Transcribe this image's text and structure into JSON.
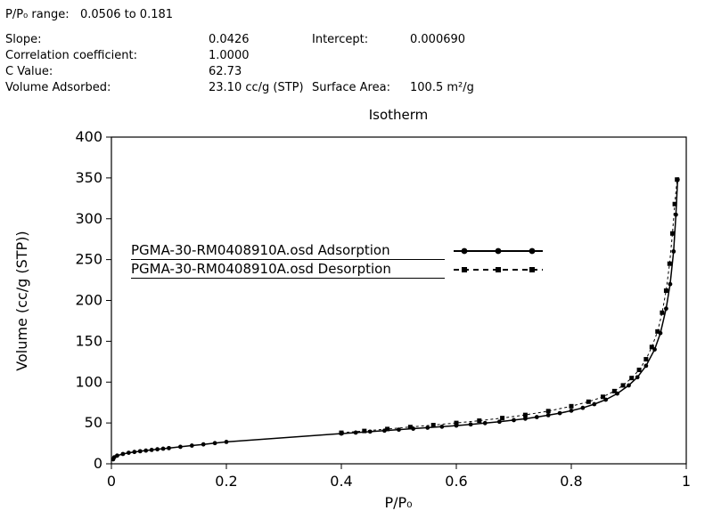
{
  "header": {
    "range_label": "P/P₀ range:",
    "range_value": "0.0506 to 0.181",
    "stats": {
      "slope": {
        "label": "Slope:",
        "value": "0.0426"
      },
      "intercept": {
        "label": "Intercept:",
        "value": "0.000690"
      },
      "correlation": {
        "label": "Correlation coefficient:",
        "value": "1.0000"
      },
      "c_value": {
        "label": "C Value:",
        "value": "62.73"
      },
      "volume_adsorbed": {
        "label": "Volume Adsorbed:",
        "value": "23.10 cc/g (STP)"
      },
      "surface_area": {
        "label": "Surface Area:",
        "value": "100.5 m²/g"
      }
    }
  },
  "chart_data": {
    "type": "line",
    "title": "Isotherm",
    "xlabel": "P/P₀",
    "ylabel": "Volume (cc/g (STP))",
    "xlim": [
      0,
      1
    ],
    "ylim": [
      0,
      400
    ],
    "xticks": [
      0,
      0.2,
      0.4,
      0.6,
      0.8,
      1
    ],
    "xtick_labels": [
      "0",
      "0.2",
      "0.4",
      "0.6",
      "0.8",
      "1"
    ],
    "yticks": [
      0,
      50,
      100,
      150,
      200,
      250,
      300,
      350,
      400
    ],
    "ytick_labels": [
      "0",
      "50",
      "100",
      "150",
      "200",
      "250",
      "300",
      "350",
      "400"
    ],
    "grid": false,
    "legend_position": "top-left-inside",
    "line_color": "#000000",
    "series": [
      {
        "name": "PGMA-30-RM0408910A.osd Adsorption",
        "marker": "circle",
        "line": "solid",
        "points": [
          [
            0.003,
            5.5
          ],
          [
            0.005,
            8
          ],
          [
            0.01,
            10
          ],
          [
            0.02,
            12
          ],
          [
            0.03,
            13.5
          ],
          [
            0.04,
            14.5
          ],
          [
            0.05,
            15.4
          ],
          [
            0.06,
            16.2
          ],
          [
            0.07,
            17.0
          ],
          [
            0.08,
            17.8
          ],
          [
            0.09,
            18.5
          ],
          [
            0.1,
            19.2
          ],
          [
            0.12,
            20.8
          ],
          [
            0.14,
            22.3
          ],
          [
            0.16,
            23.8
          ],
          [
            0.18,
            25.3
          ],
          [
            0.2,
            26.8
          ],
          [
            0.4,
            37
          ],
          [
            0.425,
            38.2
          ],
          [
            0.45,
            39.4
          ],
          [
            0.475,
            40.6
          ],
          [
            0.5,
            41.8
          ],
          [
            0.525,
            43
          ],
          [
            0.55,
            44.2
          ],
          [
            0.575,
            45.4
          ],
          [
            0.6,
            46.8
          ],
          [
            0.625,
            48.2
          ],
          [
            0.65,
            49.8
          ],
          [
            0.675,
            51.5
          ],
          [
            0.7,
            53.5
          ],
          [
            0.72,
            55.2
          ],
          [
            0.74,
            57.2
          ],
          [
            0.76,
            59.5
          ],
          [
            0.78,
            62
          ],
          [
            0.8,
            65
          ],
          [
            0.82,
            68.5
          ],
          [
            0.84,
            73
          ],
          [
            0.86,
            78.5
          ],
          [
            0.88,
            86
          ],
          [
            0.9,
            96
          ],
          [
            0.915,
            106
          ],
          [
            0.93,
            120
          ],
          [
            0.945,
            140
          ],
          [
            0.955,
            160
          ],
          [
            0.965,
            190
          ],
          [
            0.972,
            220
          ],
          [
            0.978,
            260
          ],
          [
            0.982,
            305
          ],
          [
            0.985,
            348
          ]
        ]
      },
      {
        "name": "PGMA-30-RM0408910A.osd Desorption",
        "marker": "square",
        "line": "dashed",
        "points": [
          [
            0.4,
            38
          ],
          [
            0.44,
            40.2
          ],
          [
            0.48,
            42.6
          ],
          [
            0.52,
            45
          ],
          [
            0.56,
            47.4
          ],
          [
            0.6,
            50
          ],
          [
            0.64,
            52.8
          ],
          [
            0.68,
            56
          ],
          [
            0.72,
            59.8
          ],
          [
            0.76,
            64.5
          ],
          [
            0.8,
            70.5
          ],
          [
            0.83,
            76
          ],
          [
            0.855,
            82
          ],
          [
            0.875,
            89
          ],
          [
            0.89,
            96
          ],
          [
            0.905,
            105
          ],
          [
            0.918,
            115
          ],
          [
            0.93,
            128
          ],
          [
            0.94,
            143
          ],
          [
            0.95,
            162
          ],
          [
            0.958,
            185
          ],
          [
            0.965,
            212
          ],
          [
            0.971,
            245
          ],
          [
            0.976,
            282
          ],
          [
            0.98,
            318
          ],
          [
            0.984,
            348
          ]
        ]
      }
    ]
  }
}
